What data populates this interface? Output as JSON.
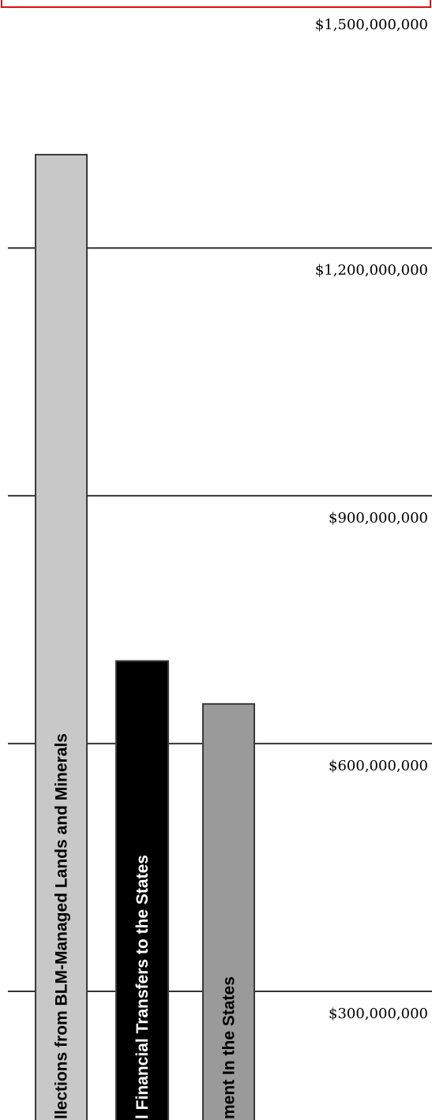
{
  "chart_data": {
    "type": "bar",
    "orientation": "vertical",
    "title": "",
    "xlabel": "",
    "ylabel": "",
    "ylim": [
      0,
      1500000000
    ],
    "y_ticks": [
      300000000,
      600000000,
      900000000,
      1200000000,
      1500000000
    ],
    "y_tick_labels": [
      "$300,000,000",
      "$600,000,000",
      "$900,000,000",
      "$1,200,000,000",
      "$1,500,000,000"
    ],
    "grid": true,
    "categories": [
      "llections from BLM-Managed Lands and Minerals",
      "l Financial Transfers to the States",
      "ment In the States"
    ],
    "values": [
      1313000000,
      700000000,
      648000000
    ],
    "colors": [
      "#c8c8c8",
      "#000000",
      "#9a9a9a"
    ],
    "label_colors": [
      "#000000",
      "#ffffff",
      "#000000"
    ],
    "frame_color": "#e01010"
  }
}
